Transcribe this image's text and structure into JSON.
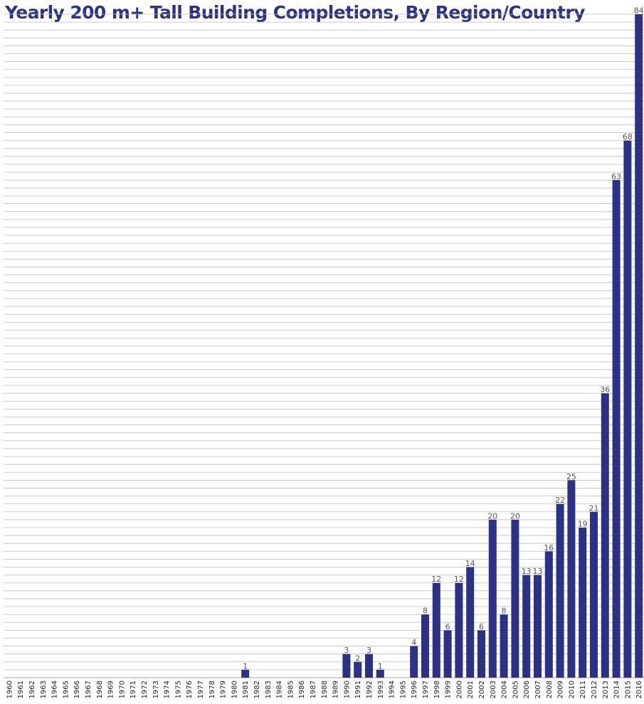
{
  "chart_data": {
    "type": "bar",
    "title": "Yearly 200 m+ Tall Building Completions, By Region/Country",
    "xlabel": "",
    "ylabel": "",
    "ylim": [
      0,
      84
    ],
    "grid": true,
    "bar_color": "#2b3186",
    "title_color": "#2b3186",
    "categories": [
      "1960",
      "1961",
      "1962",
      "1963",
      "1964",
      "1965",
      "1966",
      "1967",
      "1968",
      "1969",
      "1970",
      "1971",
      "1972",
      "1973",
      "1974",
      "1975",
      "1976",
      "1977",
      "1978",
      "1979",
      "1980",
      "1981",
      "1982",
      "1983",
      "1984",
      "1985",
      "1986",
      "1987",
      "1988",
      "1989",
      "1990",
      "1991",
      "1992",
      "1993",
      "1994",
      "1995",
      "1996",
      "1997",
      "1998",
      "1999",
      "2000",
      "2001",
      "2002",
      "2003",
      "2004",
      "2005",
      "2006",
      "2007",
      "2008",
      "2009",
      "2010",
      "2011",
      "2012",
      "2013",
      "2014",
      "2015",
      "2016"
    ],
    "values": [
      0,
      0,
      0,
      0,
      0,
      0,
      0,
      0,
      0,
      0,
      0,
      0,
      0,
      0,
      0,
      0,
      0,
      0,
      0,
      0,
      0,
      1,
      0,
      0,
      0,
      0,
      0,
      0,
      0,
      0,
      3,
      2,
      3,
      1,
      0,
      0,
      4,
      8,
      12,
      6,
      12,
      14,
      6,
      20,
      8,
      20,
      13,
      13,
      16,
      22,
      25,
      19,
      21,
      36,
      63,
      68,
      84
    ]
  }
}
